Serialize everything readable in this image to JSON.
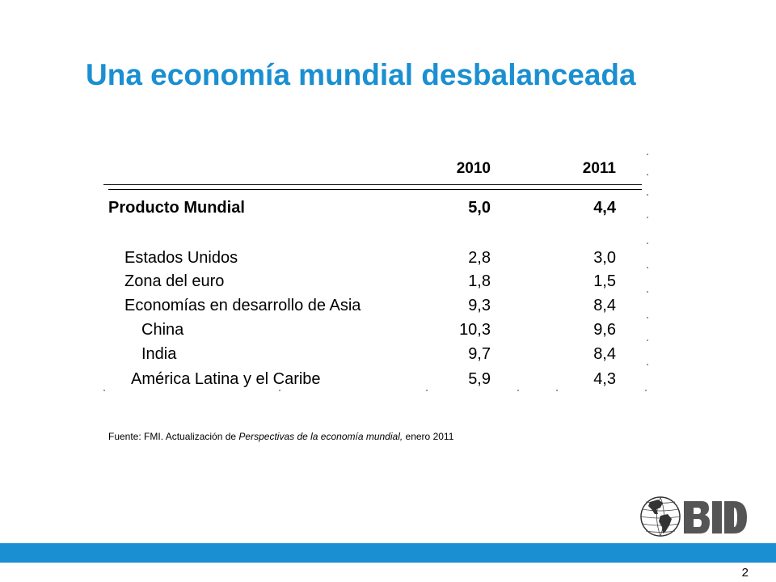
{
  "slide": {
    "title": "Una economía mundial desbalanceada",
    "page_number": "2",
    "accent_color": "#1a8fd1"
  },
  "table": {
    "headers": [
      "2010",
      "2011"
    ],
    "rows": [
      {
        "label": "Producto Mundial",
        "v2010": "5,0",
        "v2011": "4,4",
        "bold": true
      },
      {
        "label": "Estados Unidos",
        "v2010": "2,8",
        "v2011": "3,0"
      },
      {
        "label": "Zona del euro",
        "v2010": "1,8",
        "v2011": "1,5"
      },
      {
        "label": "Economías en desarrollo de Asia",
        "v2010": "9,3",
        "v2011": "8,4"
      },
      {
        "label": "China",
        "v2010": "10,3",
        "v2011": "9,6"
      },
      {
        "label": "India",
        "v2010": "9,7",
        "v2011": "8,4"
      },
      {
        "label": "América Latina y el Caribe",
        "v2010": "5,9",
        "v2011": "4,3"
      }
    ]
  },
  "source": {
    "prefix": "Fuente: FMI. Actualización de ",
    "italic": "Perspectivas de la economía mundial,",
    "suffix": " enero 2011"
  },
  "logo": {
    "text": "BID",
    "icon": "globe-americas-icon"
  }
}
